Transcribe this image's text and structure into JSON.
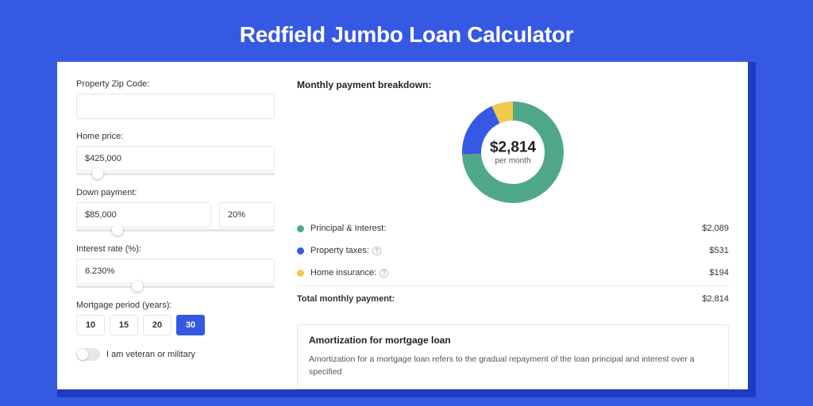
{
  "page": {
    "title": "Redfield Jumbo Loan Calculator",
    "bg_color": "#3659e3",
    "card_shadow_color": "#1f3bbf",
    "card_bg": "#ffffff"
  },
  "form": {
    "zip": {
      "label": "Property Zip Code:",
      "value": ""
    },
    "home_price": {
      "label": "Home price:",
      "value": "$425,000",
      "slider_pct": 8
    },
    "down_payment": {
      "label": "Down payment:",
      "value": "$85,000",
      "pct_value": "20%",
      "slider_pct": 18
    },
    "interest": {
      "label": "Interest rate (%):",
      "value": "6.230%",
      "slider_pct": 28
    },
    "period": {
      "label": "Mortgage period (years):",
      "options": [
        "10",
        "15",
        "20",
        "30"
      ],
      "active_index": 3
    },
    "veteran": {
      "label": "I am veteran or military",
      "checked": false
    }
  },
  "breakdown": {
    "heading": "Monthly payment breakdown:",
    "donut": {
      "value": "$2,814",
      "sub": "per month",
      "size": 128,
      "thickness": 24,
      "slices": [
        {
          "key": "principal_interest",
          "pct": 74.2,
          "color": "#4fa88a"
        },
        {
          "key": "property_taxes",
          "pct": 18.9,
          "color": "#3659e3"
        },
        {
          "key": "home_insurance",
          "pct": 6.9,
          "color": "#f2c94c"
        }
      ]
    },
    "items": [
      {
        "label": "Principal & Interest:",
        "value": "$2,089",
        "color": "#4fa88a",
        "info": false
      },
      {
        "label": "Property taxes:",
        "value": "$531",
        "color": "#3659e3",
        "info": true
      },
      {
        "label": "Home insurance:",
        "value": "$194",
        "color": "#f2c94c",
        "info": true
      }
    ],
    "total": {
      "label": "Total monthly payment:",
      "value": "$2,814"
    }
  },
  "amort": {
    "heading": "Amortization for mortgage loan",
    "text": "Amortization for a mortgage loan refers to the gradual repayment of the loan principal and interest over a specified"
  }
}
